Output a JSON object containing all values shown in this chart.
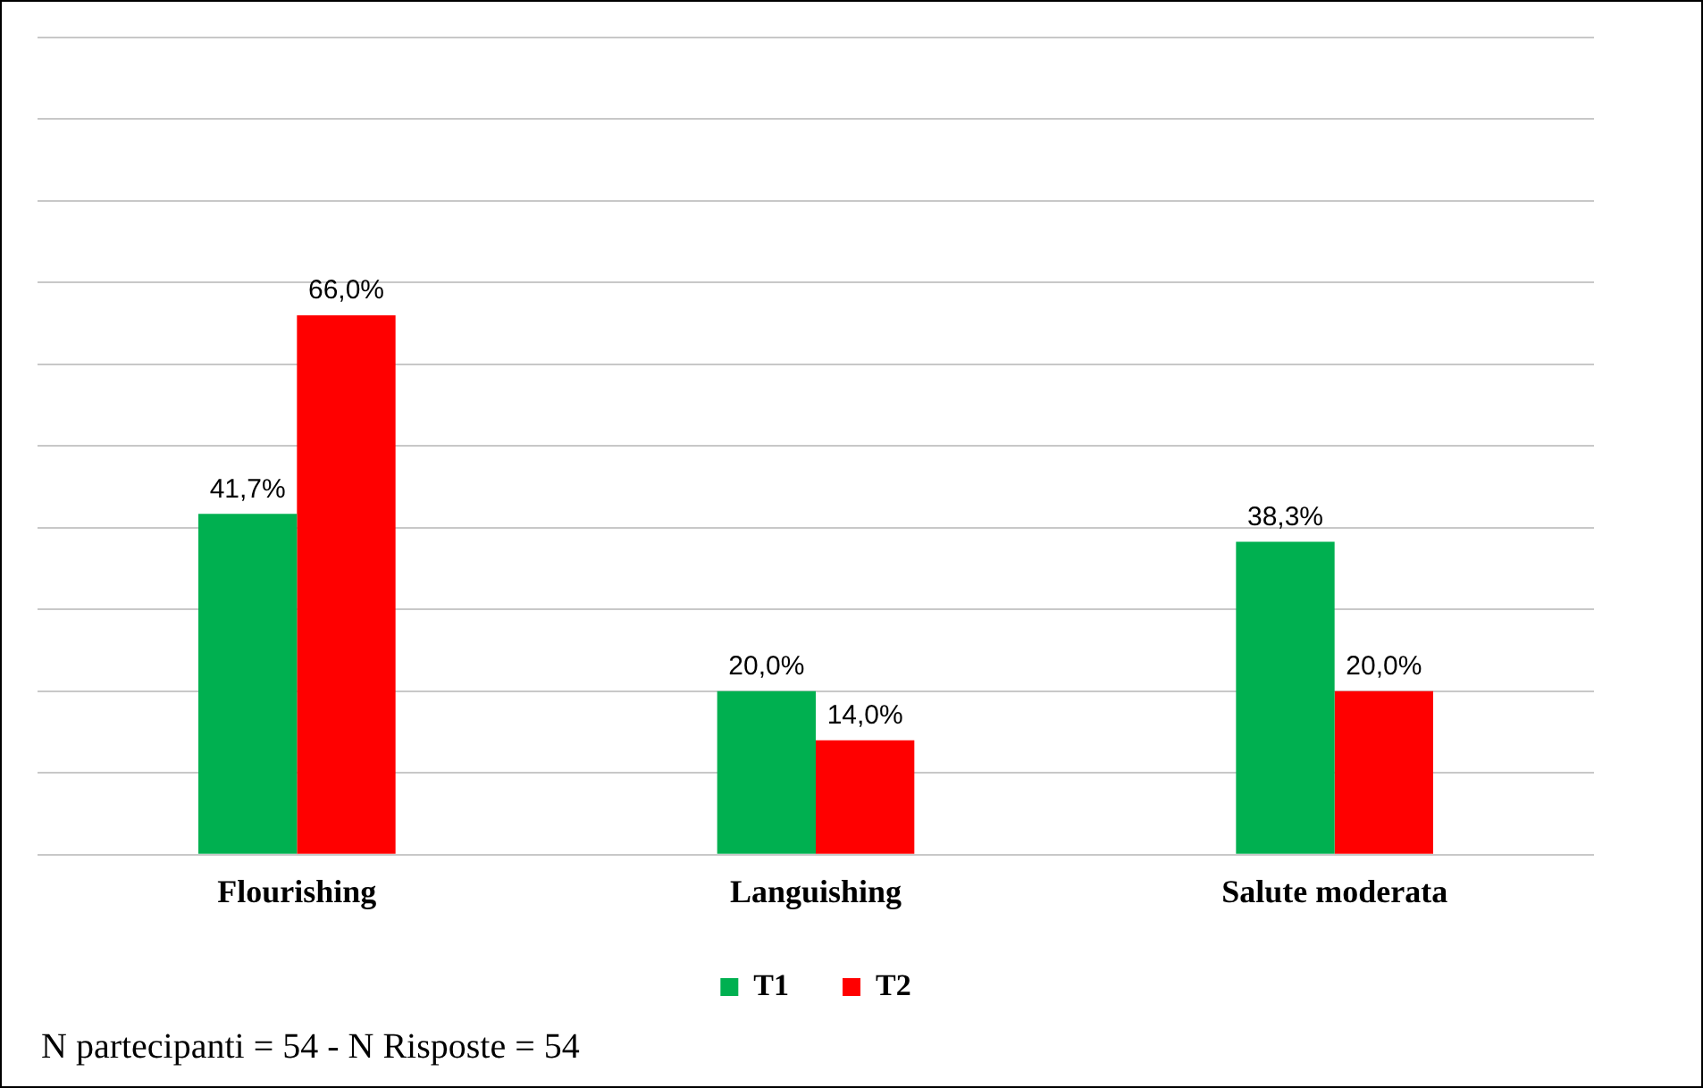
{
  "chart_data": {
    "type": "bar",
    "categories": [
      "Flourishing",
      "Languishing",
      "Salute moderata"
    ],
    "series": [
      {
        "name": "T1",
        "color": "#00b050",
        "values": [
          41.7,
          20.0,
          38.3
        ],
        "value_labels": [
          "41,7%",
          "20,0%",
          "38,3%"
        ]
      },
      {
        "name": "T2",
        "color": "#ff0000",
        "values": [
          66.0,
          14.0,
          20.0
        ],
        "value_labels": [
          "66,0%",
          "14,0%",
          "20,0%"
        ]
      }
    ],
    "ylim": [
      0,
      100
    ],
    "yticks": [
      {
        "value": 0,
        "label": null
      },
      {
        "value": 10,
        "label": null
      },
      {
        "value": 20,
        "label": null
      },
      {
        "value": 30,
        "label": null
      },
      {
        "value": 40,
        "label": null
      },
      {
        "value": 50,
        "label": null
      },
      {
        "value": 60,
        "label": null
      },
      {
        "value": 70,
        "label": null
      },
      {
        "value": 80,
        "label": null
      },
      {
        "value": 90,
        "label": null
      },
      {
        "value": 100,
        "label": null
      }
    ],
    "grid": "y",
    "tick_labels": "x",
    "legend": "bottom",
    "annotations": [
      "N partecipanti = 54 - N Risposte = 54"
    ]
  }
}
